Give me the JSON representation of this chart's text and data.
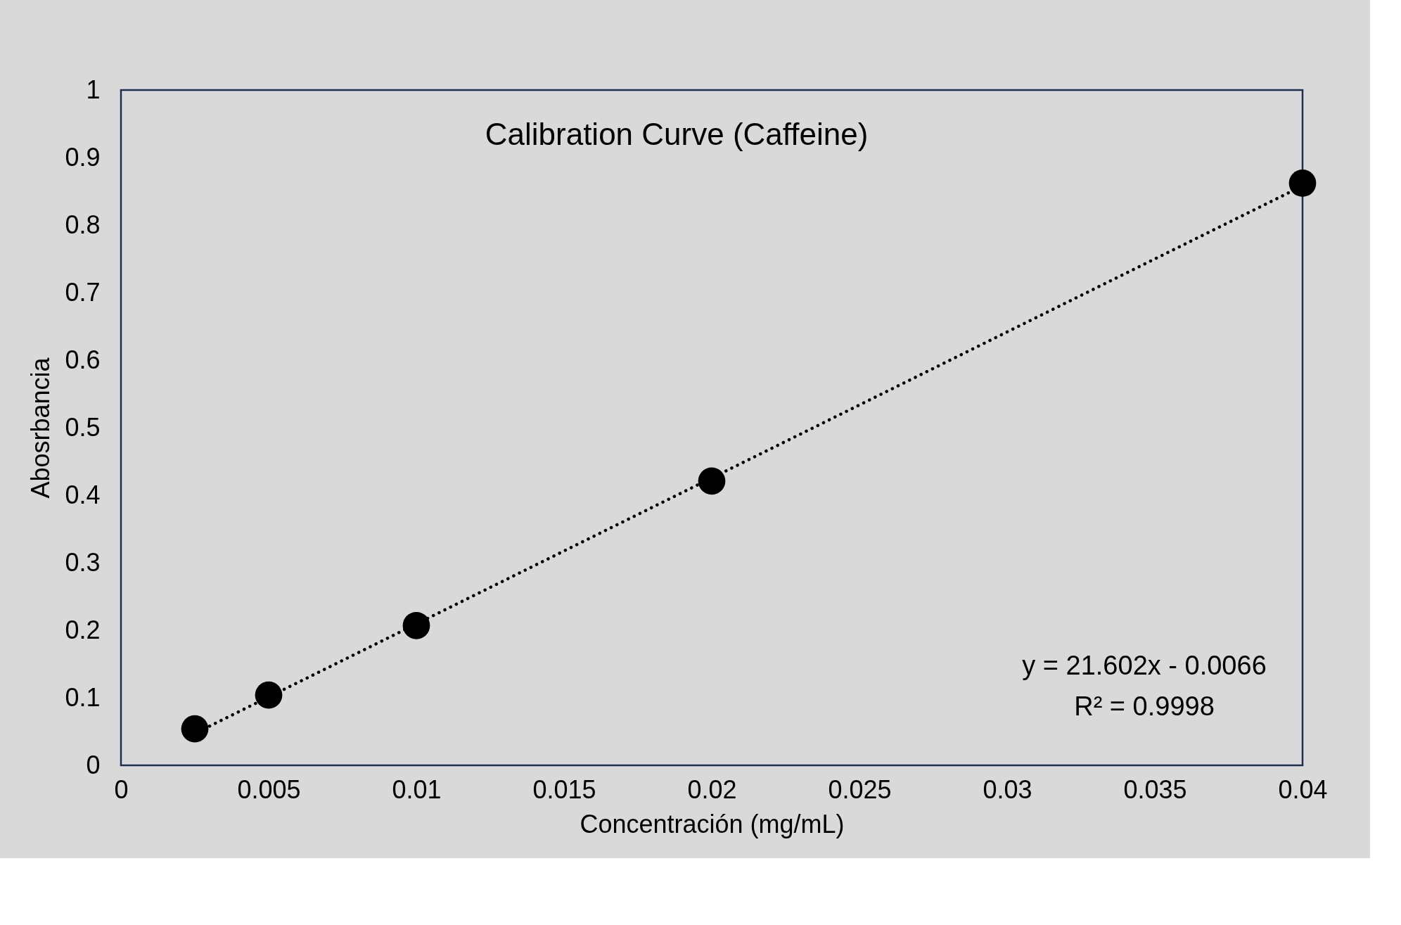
{
  "chart_data": {
    "type": "scatter",
    "title": "Calibration Curve (Caffeine)",
    "xlabel": "Concentración (mg/mL)",
    "ylabel": "Abosrbancia",
    "series": [
      {
        "type": "scatter",
        "color": "#000000",
        "marker": "circle",
        "x": [
          0.0025,
          0.005,
          0.01,
          0.02,
          0.04
        ],
        "values": [
          0.054,
          0.104,
          0.207,
          0.421,
          0.862
        ]
      },
      {
        "type": "line",
        "color": "#000000",
        "line_style": "dotted",
        "marker": "none",
        "x": [
          0.003,
          0.04
        ],
        "values": [
          0.058,
          0.858
        ]
      }
    ],
    "xlim": [
      0,
      0.04
    ],
    "xticks": [
      0,
      0.005,
      0.01,
      0.015,
      0.02,
      0.025,
      0.03,
      0.035,
      0.04
    ],
    "ylim": [
      0,
      1
    ],
    "yticks": [
      0,
      0.1,
      0.2,
      0.3,
      0.4,
      0.5,
      0.6,
      0.7,
      0.8,
      0.9,
      1
    ],
    "annotations": [
      "y = 21.602x - 0.0066",
      "R² = 0.9998"
    ],
    "grid": false,
    "legend": false
  }
}
